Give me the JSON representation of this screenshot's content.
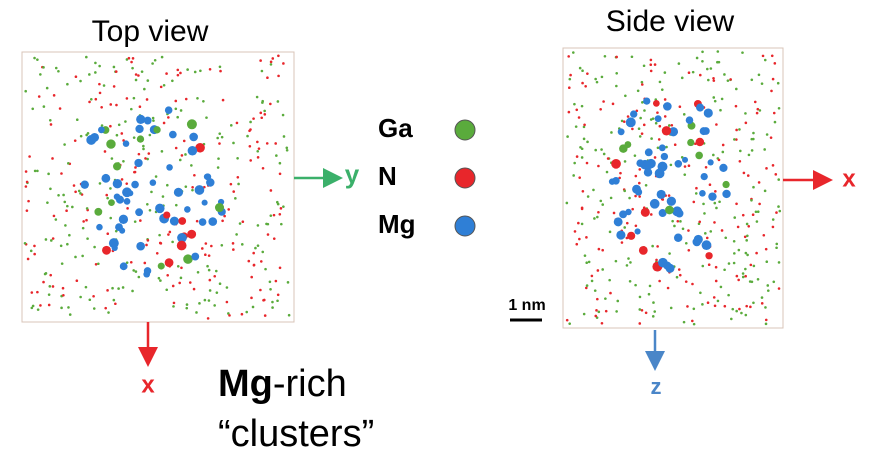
{
  "top_view": {
    "title": "Top view",
    "axis_right": "y",
    "axis_down": "x"
  },
  "side_view": {
    "title": "Side view",
    "axis_right": "x",
    "axis_down": "z",
    "scale_bar": "1 nm"
  },
  "legend": [
    {
      "label": "Ga",
      "color": "#5aab3c"
    },
    {
      "label": "N",
      "color": "#e8262b"
    },
    {
      "label": "Mg",
      "color": "#2f7fd6"
    }
  ],
  "caption": {
    "bold": "Mg",
    "rest": "-rich",
    "line2": "“clusters”"
  }
}
